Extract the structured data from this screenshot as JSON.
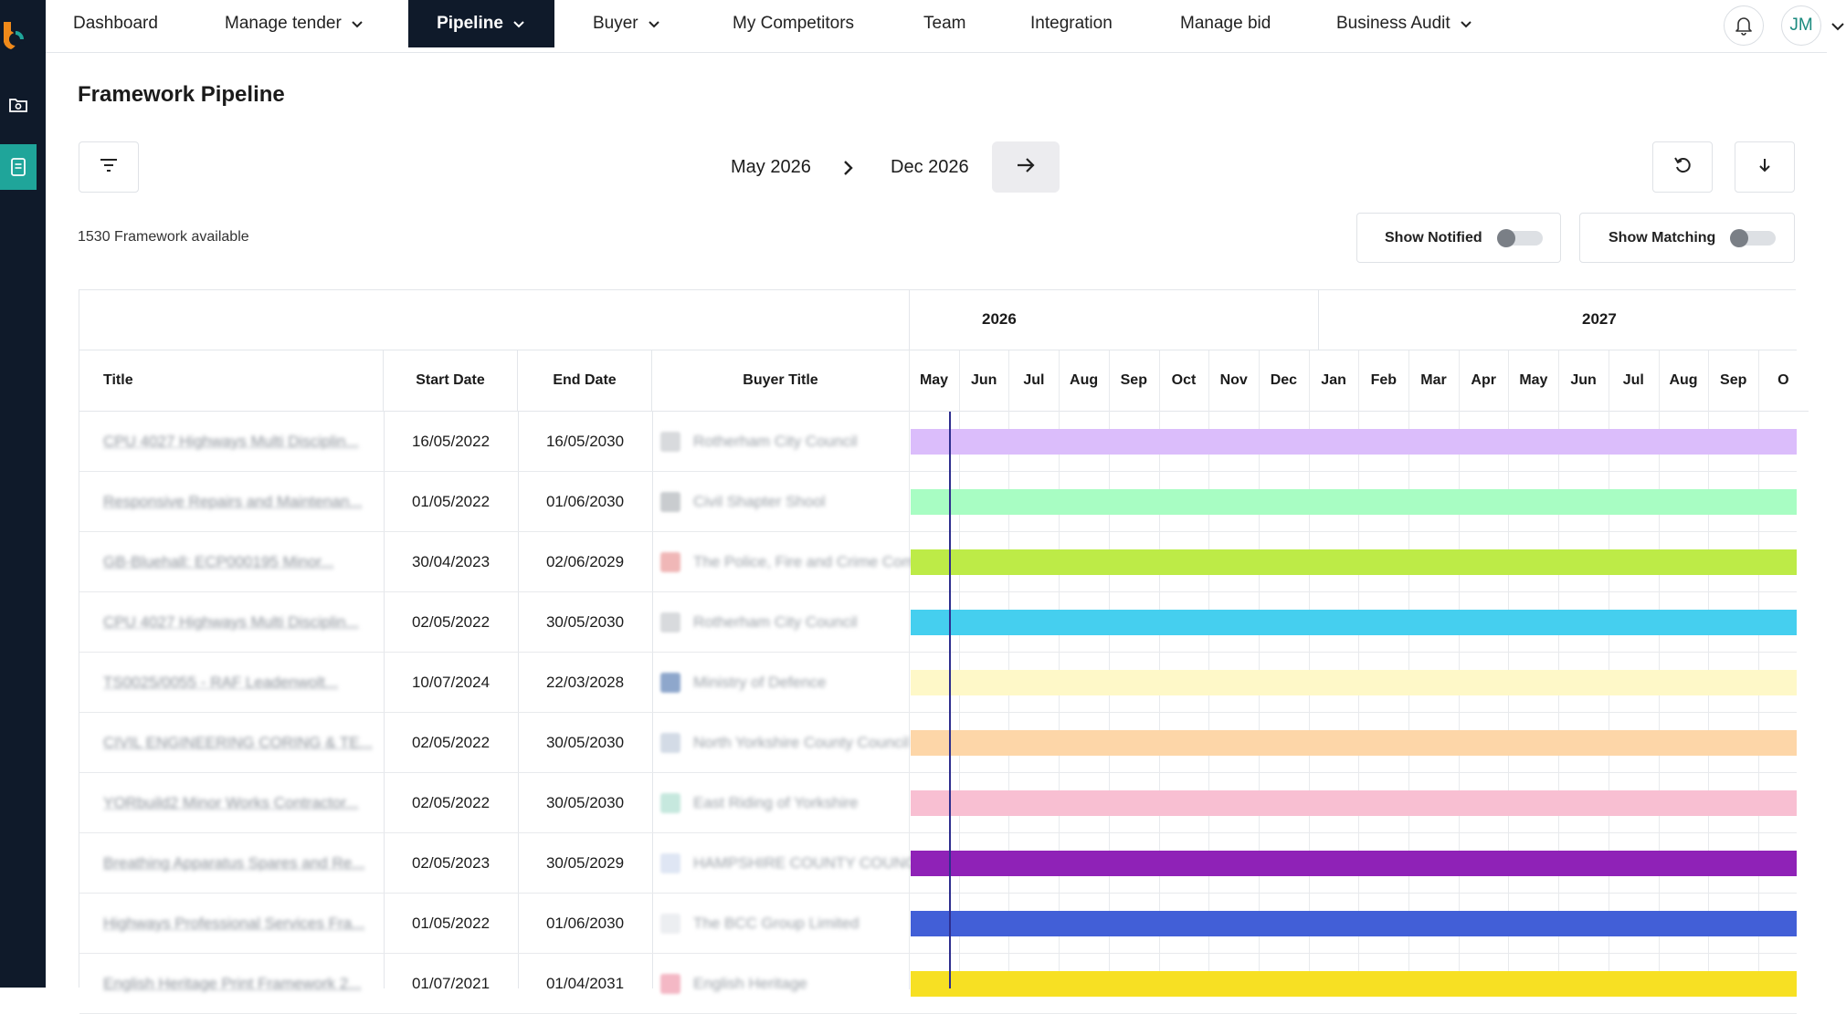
{
  "nav": {
    "items": [
      {
        "label": "Dashboard",
        "has_chevron": false
      },
      {
        "label": "Manage tender",
        "has_chevron": true
      },
      {
        "label": "Pipeline",
        "has_chevron": true,
        "active": true
      },
      {
        "label": "Buyer",
        "has_chevron": true
      },
      {
        "label": "My Competitors",
        "has_chevron": false
      },
      {
        "label": "Team",
        "has_chevron": false
      },
      {
        "label": "Integration",
        "has_chevron": false
      },
      {
        "label": "Manage bid",
        "has_chevron": false
      },
      {
        "label": "Business Audit",
        "has_chevron": true
      }
    ],
    "avatar_initials": "JM"
  },
  "page": {
    "title": "Framework Pipeline",
    "range_start": "May 2026",
    "range_end": "Dec 2026",
    "count_text": "1530 Framework available",
    "show_notified_label": "Show Notified",
    "show_matching_label": "Show Matching",
    "show_notified_on": false,
    "show_matching_on": false
  },
  "table": {
    "headers": {
      "title": "Title",
      "start_date": "Start Date",
      "end_date": "End Date",
      "buyer_title": "Buyer Title"
    },
    "years": [
      "2026",
      "2027"
    ],
    "months": [
      "May",
      "Jun",
      "Jul",
      "Aug",
      "Sep",
      "Oct",
      "Nov",
      "Dec",
      "Jan",
      "Feb",
      "Mar",
      "Apr",
      "May",
      "Jun",
      "Jul",
      "Aug",
      "Sep",
      "O"
    ],
    "rows": [
      {
        "title": "CPU 4027 Highways Multi Disciplin...",
        "start": "16/05/2022",
        "end": "16/05/2030",
        "buyer": "Rotherham City Council",
        "bar_color": "#dbbdfb",
        "logo_color": "#d8dadd"
      },
      {
        "title": "Responsive Repairs and Maintenan...",
        "start": "01/05/2022",
        "end": "01/06/2030",
        "buyer": "Civil Shapter Shool",
        "bar_color": "#a8fdc3",
        "logo_color": "#c9cccf"
      },
      {
        "title": "GB-Bluehall: ECP000195 Minor...",
        "start": "30/04/2023",
        "end": "02/06/2029",
        "buyer": "The Police, Fire and Crime Com",
        "bar_color": "#bdeb47",
        "logo_color": "#f0b7b7"
      },
      {
        "title": "CPU 4027 Highways Multi Disciplin...",
        "start": "02/05/2022",
        "end": "30/05/2030",
        "buyer": "Rotherham City Council",
        "bar_color": "#45cfef",
        "logo_color": "#d8dadd"
      },
      {
        "title": "TS0025/0055 - RAF Leadenwolt...",
        "start": "10/07/2024",
        "end": "22/03/2028",
        "buyer": "Ministry of Defence",
        "bar_color": "#fef8c8",
        "logo_color": "#8ea7cc"
      },
      {
        "title": "CIVIL ENGINEERING CORING & TE...",
        "start": "02/05/2022",
        "end": "30/05/2030",
        "buyer": "North Yorkshire County Council",
        "bar_color": "#fdd6a8",
        "logo_color": "#d3dbe6"
      },
      {
        "title": "YORbuild2 Minor Works Contractor...",
        "start": "02/05/2022",
        "end": "30/05/2030",
        "buyer": "East Riding of Yorkshire",
        "bar_color": "#f8bfd2",
        "logo_color": "#c6e8de"
      },
      {
        "title": "Breathing Apparatus Spares and Re...",
        "start": "02/05/2023",
        "end": "30/05/2029",
        "buyer": "HAMPSHIRE COUNTY COUNC",
        "bar_color": "#8f22b7",
        "logo_color": "#dfe6f4"
      },
      {
        "title": "Highways Professional Services Fra...",
        "start": "01/05/2022",
        "end": "01/06/2030",
        "buyer": "The BCC Group Limited",
        "bar_color": "#425fd7",
        "logo_color": "#eceef1"
      },
      {
        "title": "English Heritage Print Framework 2...",
        "start": "01/07/2021",
        "end": "01/04/2031",
        "buyer": "English Heritage",
        "bar_color": "#f7e023",
        "logo_color": "#f4b8c5"
      }
    ]
  },
  "colors": {
    "nav_active_bg": "#0f1a2a",
    "rail_bg": "#0f1a2a",
    "rail_active": "#1fa59a",
    "today_line": "#2e2e8f"
  },
  "icons": {
    "logo": "brand-logo-icon",
    "rail": [
      "dashboard-folder-icon",
      "document-list-icon"
    ],
    "filter": "filter-icon",
    "range_separator": "chevron-right-icon",
    "next": "arrow-right-icon",
    "reset": "refresh-icon",
    "download": "download-icon",
    "bell": "bell-icon"
  }
}
